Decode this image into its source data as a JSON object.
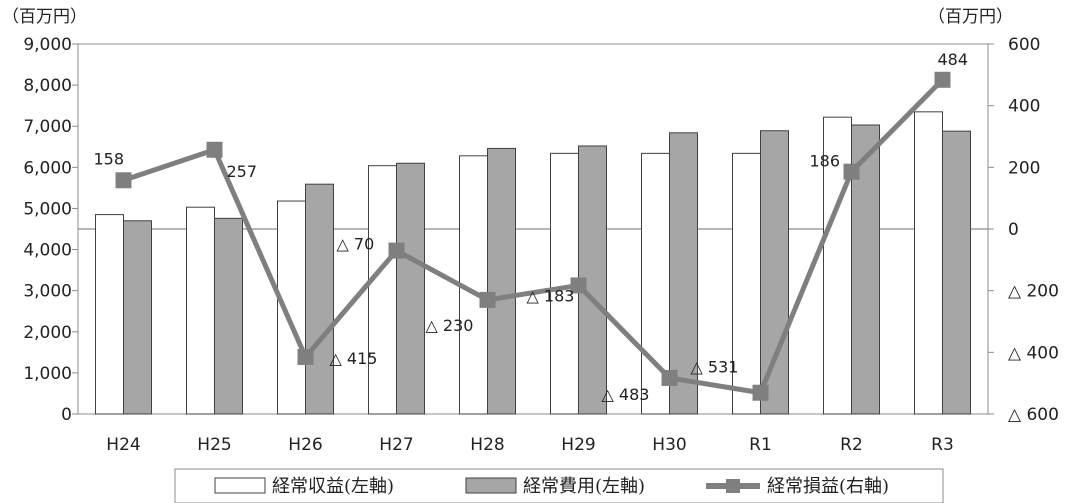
{
  "chart_data": {
    "type": "bar+line",
    "left_unit": "（百万円）",
    "right_unit": "（百万円）",
    "categories": [
      "H24",
      "H25",
      "H26",
      "H27",
      "H28",
      "H29",
      "H30",
      "R1",
      "R2",
      "R3"
    ],
    "y_left": {
      "lim": [
        0,
        9000
      ],
      "ticks": [
        0,
        1000,
        2000,
        3000,
        4000,
        5000,
        6000,
        7000,
        8000,
        9000
      ],
      "tick_labels": [
        "0",
        "1,000",
        "2,000",
        "3,000",
        "4,000",
        "5,000",
        "6,000",
        "7,000",
        "8,000",
        "9,000"
      ]
    },
    "y_right": {
      "lim": [
        -600,
        600
      ],
      "ticks": [
        600,
        400,
        200,
        0,
        -200,
        -400,
        -600
      ],
      "tick_labels": [
        "600",
        "400",
        "200",
        "0",
        "△ 200",
        "△ 400",
        "△ 600"
      ]
    },
    "series": [
      {
        "name": "経常収益(左軸)",
        "type": "bar",
        "axis": "left",
        "color": "#ffffff",
        "values": [
          4850,
          5030,
          5180,
          6040,
          6280,
          6340,
          6340,
          6340,
          7220,
          7350
        ]
      },
      {
        "name": "経常費用(左軸)",
        "type": "bar",
        "axis": "left",
        "color": "#a6a6a6",
        "values": [
          4700,
          4760,
          5590,
          6100,
          6460,
          6520,
          6840,
          6890,
          7030,
          6880
        ]
      },
      {
        "name": "経常損益(右軸)",
        "type": "line",
        "axis": "right",
        "color": "#7f7f7f",
        "values": [
          158,
          257,
          -415,
          -70,
          -230,
          -183,
          -483,
          -531,
          186,
          484
        ],
        "labels": [
          "158",
          "257",
          "△ 415",
          "△ 70",
          "△ 230",
          "△ 183",
          "△ 483",
          "△ 531",
          "186",
          "484"
        ]
      }
    ],
    "legend": {
      "position": "bottom",
      "items": [
        "経常収益(左軸)",
        "経常費用(左軸)",
        "経常損益(右軸)"
      ]
    },
    "grid": false
  }
}
